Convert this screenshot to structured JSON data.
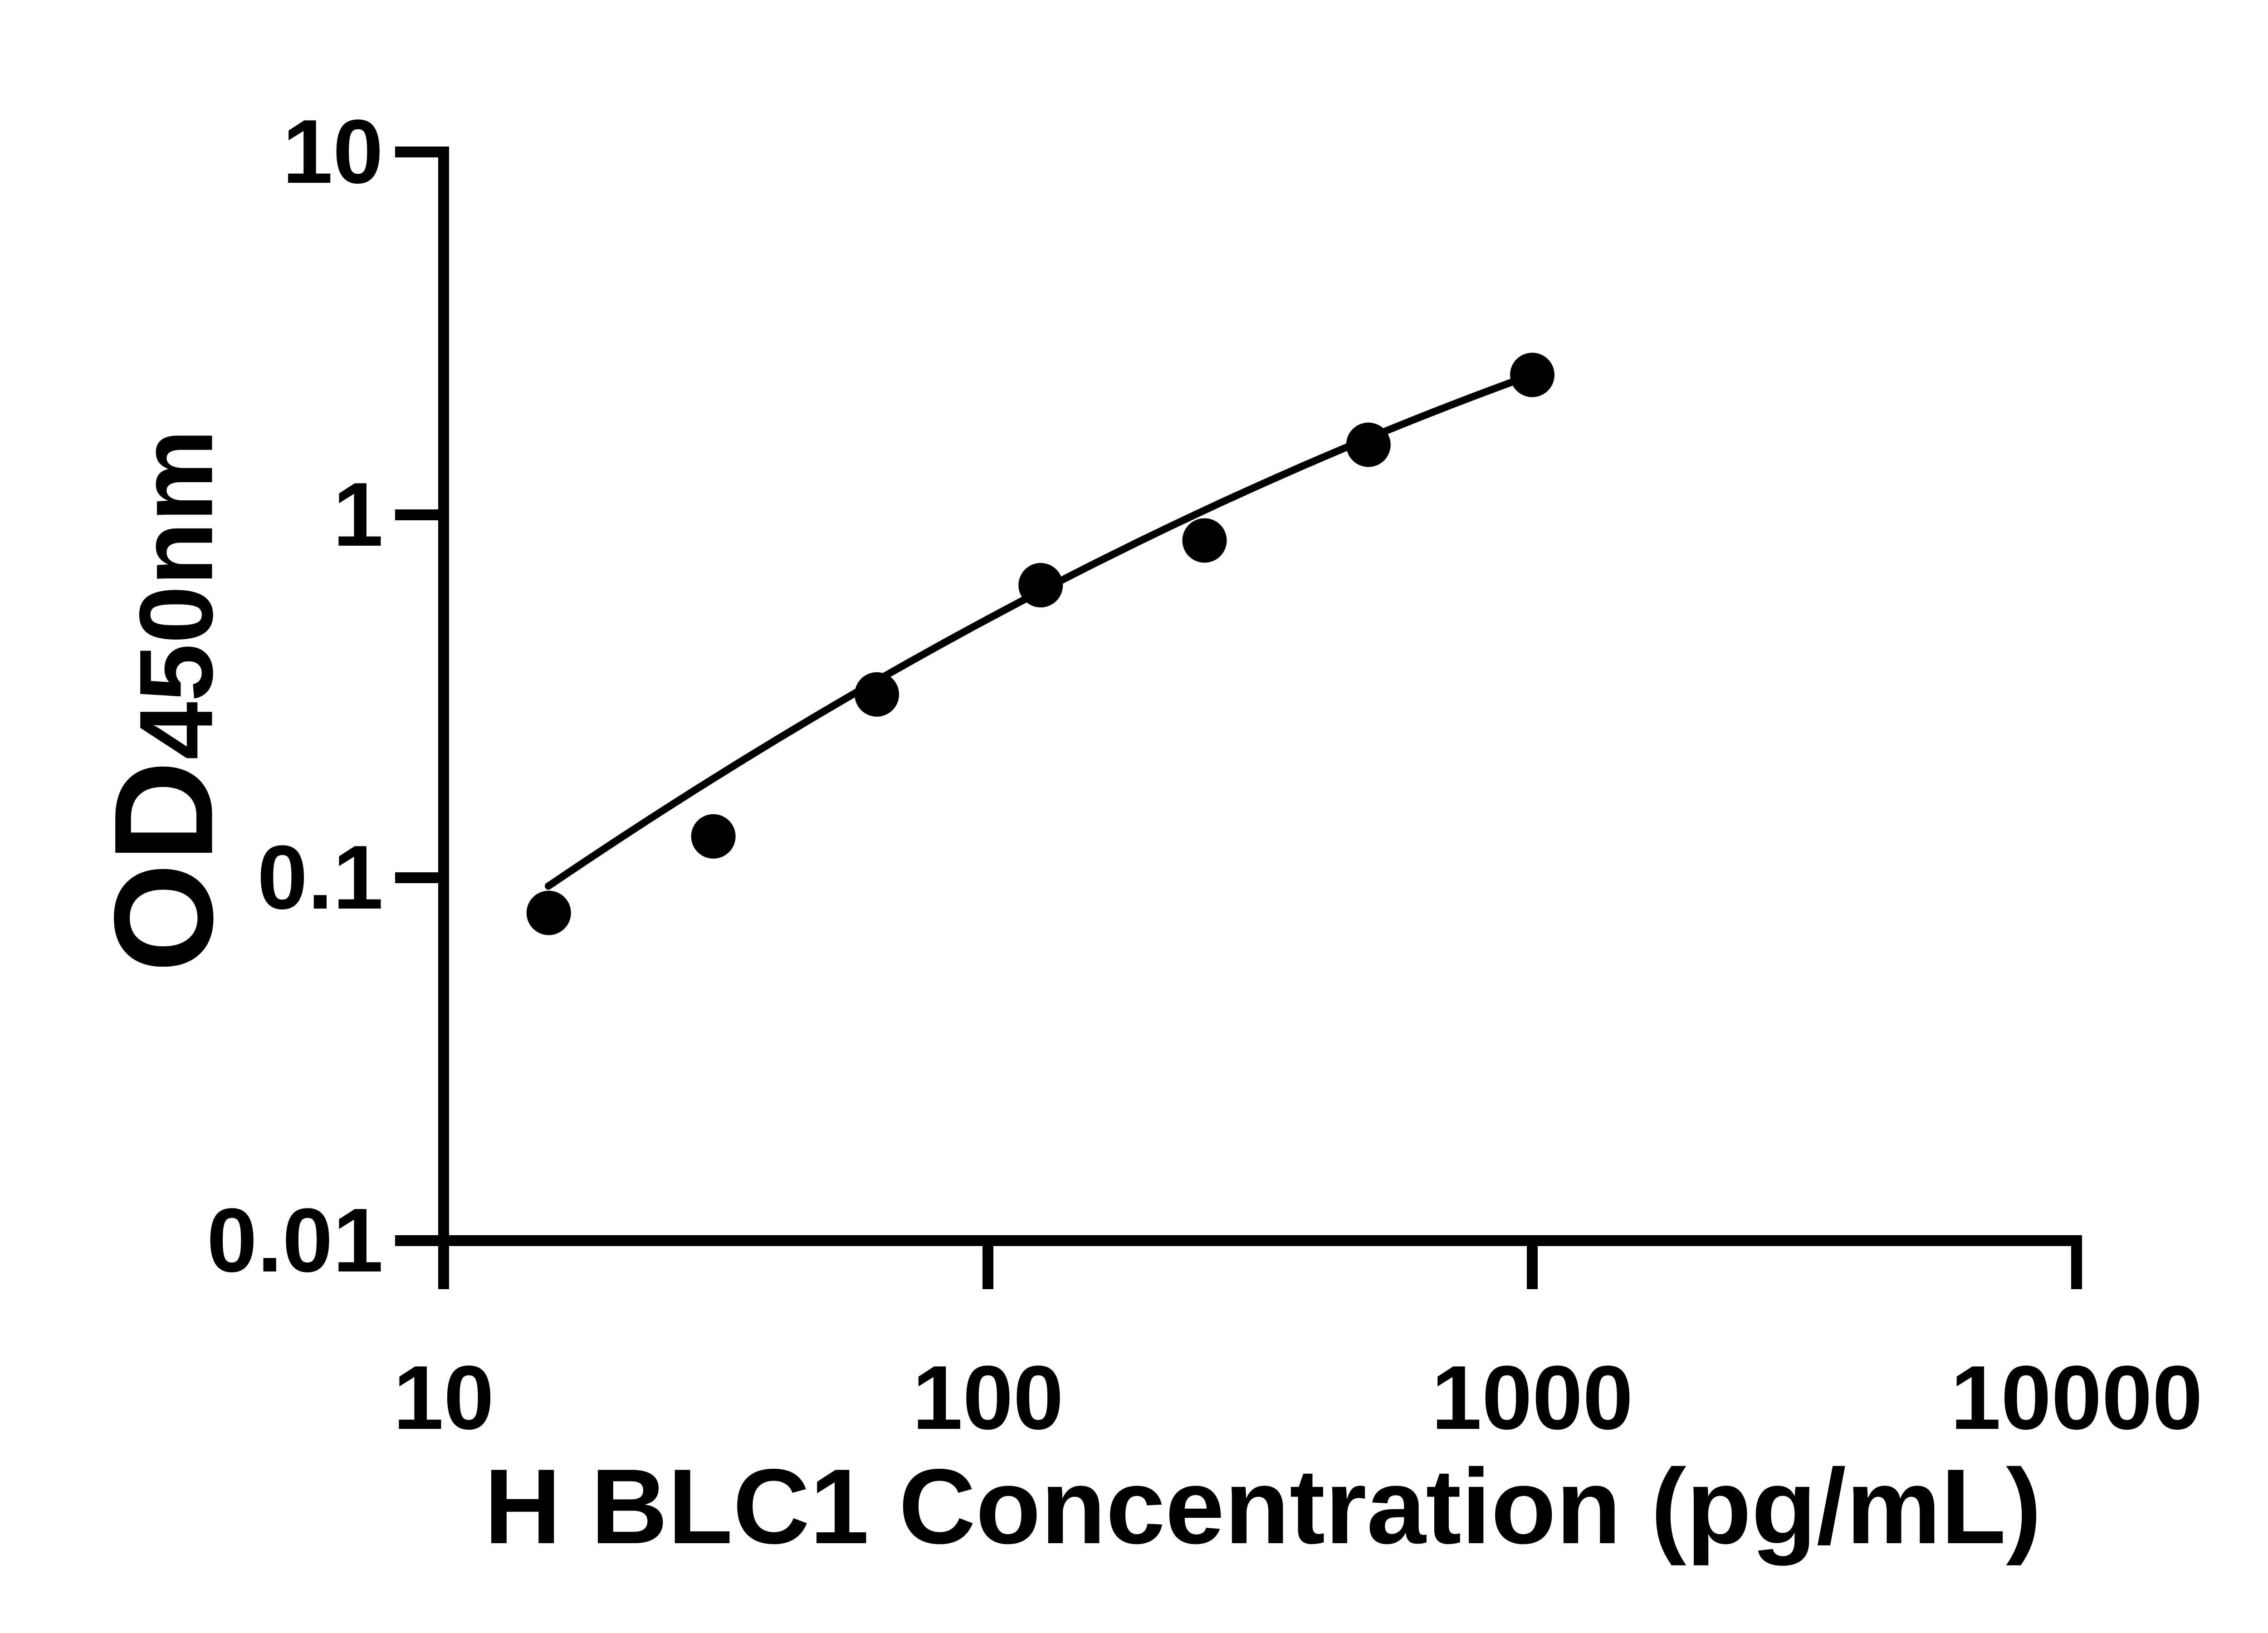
{
  "figure": {
    "y_axis_label": {
      "main": "OD",
      "subscript": "450nm"
    },
    "x_axis_label": "H BLC1 Concentration (pg/mL)"
  },
  "chart_data": {
    "type": "scatter",
    "title": "",
    "xlabel": "H BLC1 Concentration (pg/mL)",
    "ylabel": "OD450nm",
    "x_scale": "log10",
    "y_scale": "log10",
    "xlim": [
      10,
      10000
    ],
    "ylim": [
      0.01,
      10
    ],
    "x_ticks": [
      10,
      100,
      1000,
      10000
    ],
    "x_tick_labels": [
      "10",
      "100",
      "1000",
      "10000"
    ],
    "y_ticks": [
      10,
      1,
      0.1,
      0.01
    ],
    "y_tick_labels": [
      "10",
      "1",
      "0.1",
      "0.01"
    ],
    "grid": false,
    "legend": false,
    "series": [
      {
        "name": "standard-curve-points",
        "marker": "filled-circle",
        "color": "#000000",
        "x": [
          15.6,
          31.3,
          62.5,
          125,
          250,
          500,
          1000
        ],
        "y": [
          0.08,
          0.13,
          0.32,
          0.64,
          0.85,
          1.56,
          2.43
        ]
      }
    ],
    "trend_curve": {
      "description": "smooth fitted standard curve drawn through the points",
      "space": "u = log10(x) - 1, v = log10(y)",
      "v_of_u": "a + b*u + c*u^2",
      "a": -1.224,
      "b": 1.0693,
      "c": -0.1321,
      "u_range": [
        0.1925,
        2.0
      ],
      "color": "#000000"
    },
    "colors": {
      "foreground": "#000000",
      "background": "#ffffff"
    }
  }
}
